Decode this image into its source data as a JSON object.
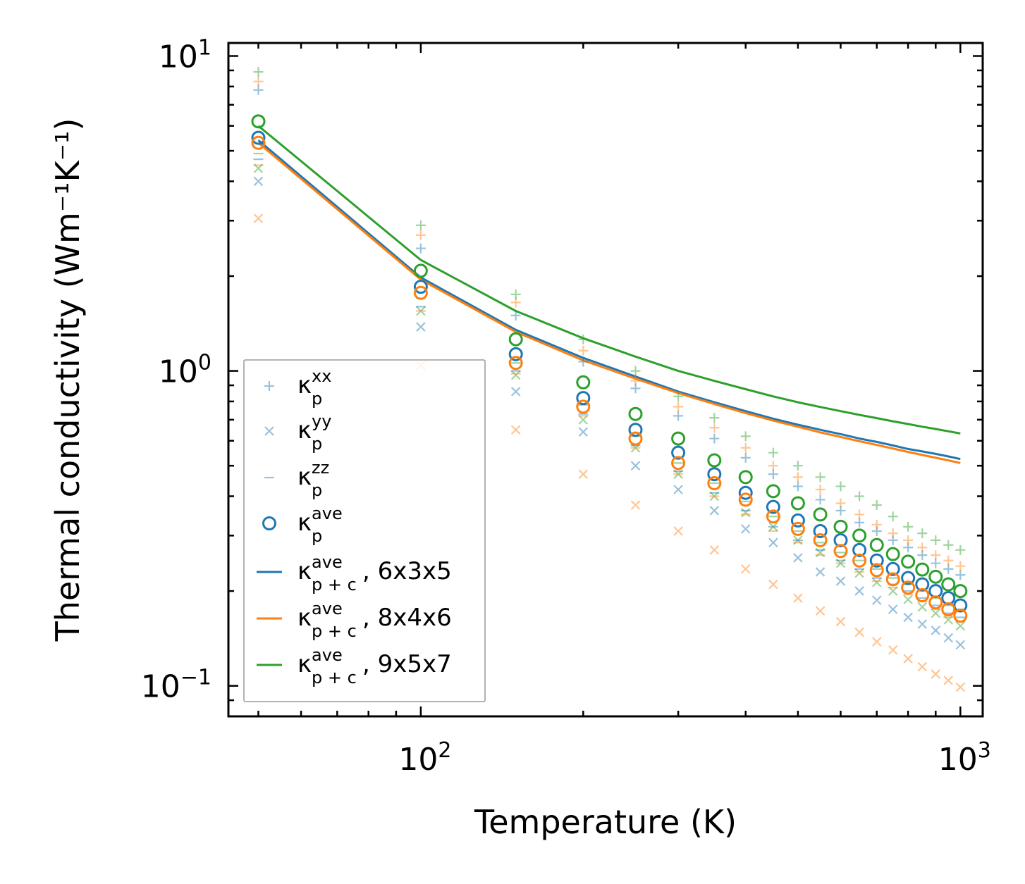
{
  "chart_data": {
    "type": "scatter",
    "xscale": "log",
    "yscale": "log",
    "xlabel": "Temperature (K)",
    "ylabel": "Thermal conductivity (Wm⁻¹K⁻¹)",
    "xlim": [
      44,
      1100
    ],
    "ylim": [
      0.08,
      11
    ],
    "x_ticks": [
      {
        "base": "10",
        "exp": "2",
        "value": 100
      },
      {
        "base": "10",
        "exp": "3",
        "value": 1000
      }
    ],
    "y_ticks": [
      {
        "base": "10",
        "exp": "−1",
        "value": 0.1
      },
      {
        "base": "10",
        "exp": "0",
        "value": 1
      },
      {
        "base": "10",
        "exp": "1",
        "value": 10
      }
    ],
    "colors": {
      "6x3x5": "#1f77b4",
      "8x4x6": "#ff7f0e",
      "9x5x7": "#2ca02c"
    },
    "x": [
      50,
      100,
      150,
      200,
      250,
      300,
      350,
      400,
      450,
      500,
      550,
      600,
      650,
      700,
      750,
      800,
      850,
      900,
      950,
      1000
    ],
    "point_series": [
      {
        "name": "kxx_6x3x5",
        "marker": "plus",
        "color": "#1f77b4",
        "alpha": 0.45,
        "values": [
          7.8,
          2.45,
          1.5,
          1.07,
          0.88,
          0.72,
          0.61,
          0.53,
          0.47,
          0.43,
          0.39,
          0.36,
          0.33,
          0.31,
          0.29,
          0.275,
          0.26,
          0.245,
          0.235,
          0.225
        ]
      },
      {
        "name": "kxx_8x4x6",
        "marker": "plus",
        "color": "#ff7f0e",
        "alpha": 0.45,
        "values": [
          8.3,
          2.7,
          1.65,
          1.16,
          0.93,
          0.77,
          0.66,
          0.57,
          0.5,
          0.46,
          0.42,
          0.38,
          0.35,
          0.325,
          0.305,
          0.29,
          0.275,
          0.26,
          0.25,
          0.24
        ]
      },
      {
        "name": "kxx_9x5x7",
        "marker": "plus",
        "color": "#2ca02c",
        "alpha": 0.45,
        "values": [
          8.9,
          2.9,
          1.75,
          1.26,
          1.0,
          0.83,
          0.71,
          0.62,
          0.55,
          0.5,
          0.46,
          0.43,
          0.4,
          0.375,
          0.345,
          0.32,
          0.305,
          0.29,
          0.28,
          0.27
        ]
      },
      {
        "name": "kyy_6x3x5",
        "marker": "x",
        "color": "#1f77b4",
        "alpha": 0.45,
        "values": [
          4.0,
          1.38,
          0.86,
          0.64,
          0.5,
          0.42,
          0.36,
          0.315,
          0.285,
          0.255,
          0.23,
          0.215,
          0.2,
          0.187,
          0.175,
          0.165,
          0.157,
          0.15,
          0.142,
          0.135
        ]
      },
      {
        "name": "kyy_8x4x6",
        "marker": "x",
        "color": "#ff7f0e",
        "alpha": 0.45,
        "values": [
          3.05,
          1.04,
          0.65,
          0.47,
          0.375,
          0.31,
          0.27,
          0.235,
          0.21,
          0.19,
          0.173,
          0.16,
          0.148,
          0.138,
          0.13,
          0.122,
          0.115,
          0.109,
          0.104,
          0.099
        ]
      },
      {
        "name": "kyy_9x5x7",
        "marker": "x",
        "color": "#2ca02c",
        "alpha": 0.45,
        "values": [
          4.4,
          1.55,
          0.97,
          0.7,
          0.57,
          0.47,
          0.4,
          0.355,
          0.32,
          0.29,
          0.265,
          0.245,
          0.228,
          0.213,
          0.2,
          0.188,
          0.178,
          0.17,
          0.162,
          0.155
        ]
      },
      {
        "name": "kzz_6x3x5",
        "marker": "minus",
        "color": "#1f77b4",
        "alpha": 0.45,
        "values": [
          4.7,
          1.6,
          1.0,
          0.73,
          0.58,
          0.48,
          0.41,
          0.36,
          0.32,
          0.29,
          0.27,
          0.25,
          0.235,
          0.22,
          0.21,
          0.2,
          0.19,
          0.18,
          0.17,
          0.165
        ]
      },
      {
        "name": "kzz_8x4x6",
        "marker": "minus",
        "color": "#ff7f0e",
        "alpha": 0.45,
        "values": [
          4.5,
          1.55,
          0.98,
          0.72,
          0.57,
          0.47,
          0.4,
          0.35,
          0.31,
          0.285,
          0.26,
          0.245,
          0.23,
          0.215,
          0.205,
          0.195,
          0.185,
          0.175,
          0.165,
          0.16
        ]
      },
      {
        "name": "kzz_9x5x7",
        "marker": "minus",
        "color": "#2ca02c",
        "alpha": 0.45,
        "values": [
          4.9,
          1.7,
          1.06,
          0.78,
          0.62,
          0.51,
          0.44,
          0.385,
          0.345,
          0.31,
          0.285,
          0.265,
          0.25,
          0.235,
          0.22,
          0.21,
          0.2,
          0.19,
          0.18,
          0.175
        ]
      },
      {
        "name": "kave_6x3x5",
        "marker": "circle",
        "color": "#1f77b4",
        "alpha": 1,
        "values": [
          5.5,
          1.85,
          1.13,
          0.82,
          0.65,
          0.55,
          0.47,
          0.41,
          0.37,
          0.335,
          0.31,
          0.29,
          0.27,
          0.25,
          0.235,
          0.22,
          0.21,
          0.2,
          0.19,
          0.18
        ]
      },
      {
        "name": "kave_8x4x6",
        "marker": "circle",
        "color": "#ff7f0e",
        "alpha": 1,
        "values": [
          5.3,
          1.77,
          1.06,
          0.77,
          0.61,
          0.51,
          0.44,
          0.39,
          0.345,
          0.315,
          0.29,
          0.268,
          0.25,
          0.233,
          0.218,
          0.205,
          0.194,
          0.184,
          0.175,
          0.167
        ]
      },
      {
        "name": "kave_9x5x7",
        "marker": "circle",
        "color": "#2ca02c",
        "alpha": 1,
        "values": [
          6.2,
          2.08,
          1.26,
          0.92,
          0.73,
          0.61,
          0.52,
          0.46,
          0.415,
          0.38,
          0.35,
          0.32,
          0.3,
          0.28,
          0.262,
          0.248,
          0.234,
          0.222,
          0.21,
          0.2
        ]
      }
    ],
    "line_series": [
      {
        "name": "κ_p+c^ave, 6x3x5",
        "color": "#1f77b4",
        "x": [
          50,
          100,
          150,
          200,
          250,
          300,
          350,
          400,
          450,
          500,
          550,
          600,
          650,
          700,
          750,
          800,
          850,
          900,
          950,
          1000
        ],
        "values": [
          5.4,
          1.98,
          1.35,
          1.1,
          0.96,
          0.86,
          0.795,
          0.745,
          0.705,
          0.675,
          0.65,
          0.63,
          0.61,
          0.595,
          0.58,
          0.565,
          0.555,
          0.545,
          0.535,
          0.525
        ]
      },
      {
        "name": "κ_p+c^ave, 8x4x6",
        "color": "#ff7f0e",
        "x": [
          50,
          100,
          150,
          200,
          250,
          300,
          350,
          400,
          450,
          500,
          550,
          600,
          650,
          700,
          750,
          800,
          850,
          900,
          950,
          1000
        ],
        "values": [
          5.3,
          1.95,
          1.33,
          1.08,
          0.945,
          0.85,
          0.785,
          0.735,
          0.695,
          0.665,
          0.638,
          0.617,
          0.598,
          0.582,
          0.567,
          0.553,
          0.541,
          0.53,
          0.52,
          0.51
        ]
      },
      {
        "name": "κ_p+c^ave, 9x5x7",
        "color": "#2ca02c",
        "x": [
          50,
          100,
          150,
          200,
          250,
          300,
          350,
          400,
          450,
          500,
          550,
          600,
          650,
          700,
          750,
          800,
          850,
          900,
          950,
          1000
        ],
        "values": [
          6.0,
          2.25,
          1.55,
          1.27,
          1.11,
          1.0,
          0.93,
          0.875,
          0.83,
          0.795,
          0.768,
          0.745,
          0.725,
          0.708,
          0.692,
          0.678,
          0.665,
          0.654,
          0.643,
          0.633
        ]
      }
    ],
    "legend": {
      "position": "lower-left",
      "entries": [
        {
          "marker": "plus",
          "color": "#1f77b4",
          "alpha": 0.45,
          "sym": "κ",
          "sub": "p",
          "sup": "xx",
          "suffix": ""
        },
        {
          "marker": "x",
          "color": "#1f77b4",
          "alpha": 0.45,
          "sym": "κ",
          "sub": "p",
          "sup": "yy",
          "suffix": ""
        },
        {
          "marker": "minus",
          "color": "#1f77b4",
          "alpha": 0.45,
          "sym": "κ",
          "sub": "p",
          "sup": "zz",
          "suffix": ""
        },
        {
          "marker": "circle",
          "color": "#1f77b4",
          "alpha": 1,
          "sym": "κ",
          "sub": "p",
          "sup": "ave",
          "suffix": ""
        },
        {
          "marker": "line",
          "color": "#1f77b4",
          "alpha": 1,
          "sym": "κ",
          "sub": "p + c",
          "sup": "ave",
          "suffix": ", 6x3x5"
        },
        {
          "marker": "line",
          "color": "#ff7f0e",
          "alpha": 1,
          "sym": "κ",
          "sub": "p + c",
          "sup": "ave",
          "suffix": ", 8x4x6"
        },
        {
          "marker": "line",
          "color": "#2ca02c",
          "alpha": 1,
          "sym": "κ",
          "sub": "p + c",
          "sup": "ave",
          "suffix": ", 9x5x7"
        }
      ]
    }
  }
}
